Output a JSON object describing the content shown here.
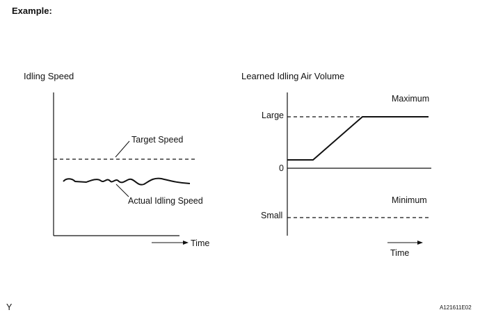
{
  "heading": "Example:",
  "left_chart": {
    "title": "Idling Speed",
    "target_label": "Target Speed",
    "actual_label": "Actual Idling Speed",
    "time_label": "Time"
  },
  "right_chart": {
    "title": "Learned Idling Air Volume",
    "maximum_label": "Maximum",
    "minimum_label": "Minimum",
    "large_label": "Large",
    "zero_label": "0",
    "small_label": "Small",
    "time_label": "Time"
  },
  "footer": {
    "left_mark": "Y",
    "figure_code": "A121611E02"
  },
  "colors": {
    "ink": "#111111"
  }
}
